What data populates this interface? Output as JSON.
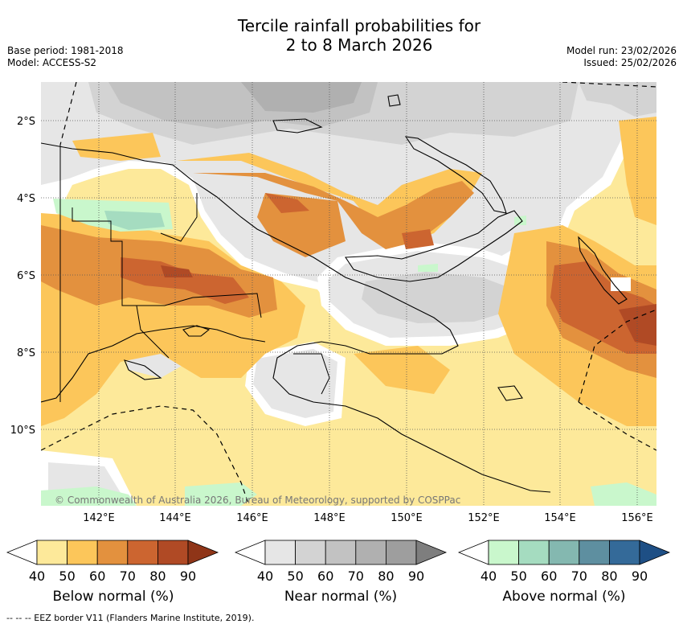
{
  "header": {
    "title_line1": "Tercile rainfall probabilities for",
    "title_line2": "2 to 8 March 2026",
    "base_period": "Base period: 1981-2018",
    "model": "Model: ACCESS-S2",
    "model_run": "Model run: 23/02/2026",
    "issued": "Issued: 25/02/2026"
  },
  "map": {
    "lat_labels": [
      "2°S",
      "4°S",
      "6°S",
      "8°S",
      "10°S"
    ],
    "lon_labels": [
      "142°E",
      "144°E",
      "146°E",
      "148°E",
      "150°E",
      "152°E",
      "154°E",
      "156°E"
    ],
    "credit": "© Commonwealth of Australia 2026, Bureau of Meteorology, supported by COSPPac"
  },
  "colorbars": [
    {
      "label": "Below normal (%)",
      "ticks": [
        "40",
        "50",
        "60",
        "70",
        "80",
        "90"
      ],
      "colors": [
        "#ffffff",
        "#fde99a",
        "#fcc65a",
        "#e3913e",
        "#cc6530",
        "#b04a25",
        "#8f3518"
      ]
    },
    {
      "label": "Near normal (%)",
      "ticks": [
        "40",
        "50",
        "60",
        "70",
        "80",
        "90"
      ],
      "colors": [
        "#ffffff",
        "#e6e6e6",
        "#d3d3d3",
        "#c2c2c2",
        "#b0b0b0",
        "#9e9e9e",
        "#7e7e7e"
      ]
    },
    {
      "label": "Above normal (%)",
      "ticks": [
        "40",
        "50",
        "60",
        "70",
        "80",
        "90"
      ],
      "colors": [
        "#ffffff",
        "#c9f7cc",
        "#a5dcc0",
        "#84b8b0",
        "#5e8fa0",
        "#346a99",
        "#1e4f85"
      ]
    }
  ],
  "footnote": "-- -- -- EEZ border V11 (Flanders Marine Institute, 2019)."
}
